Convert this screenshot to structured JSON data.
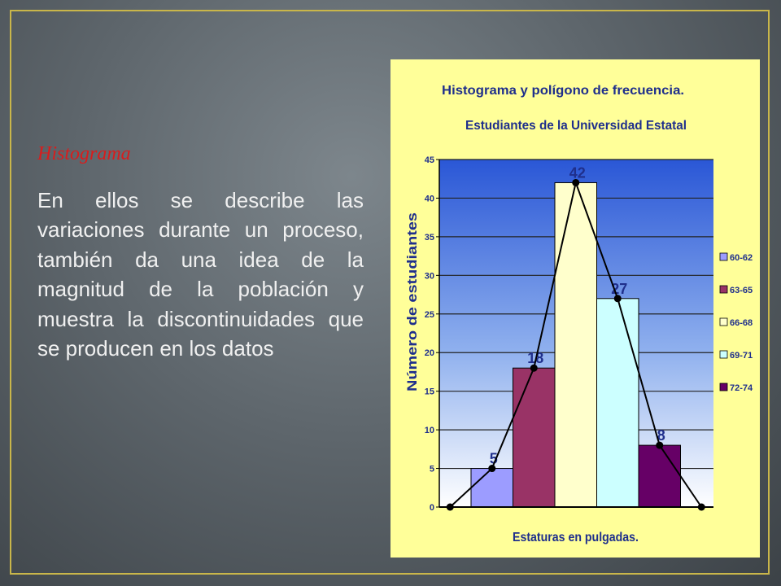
{
  "slide": {
    "heading": "Histograma",
    "body": "En ellos se describe las variaciones durante un proceso, también da una idea de la magnitud de la población y muestra la discontinuidades que se producen en los datos"
  },
  "chart_data": {
    "type": "bar",
    "title": "Histograma y polígono de frecuencia.",
    "subtitle": "Estudiantes de la Universidad Estatal",
    "xlabel": "Estaturas en pulgadas.",
    "ylabel": "Número de estudiantes",
    "ylim": [
      0,
      45
    ],
    "yticks": [
      0,
      5,
      10,
      15,
      20,
      25,
      30,
      35,
      40,
      45
    ],
    "grid": true,
    "legend_position": "right",
    "categories": [
      "60-62",
      "63-65",
      "66-68",
      "69-71",
      "72-74"
    ],
    "values": [
      5,
      18,
      42,
      27,
      8
    ],
    "data_labels": [
      "5",
      "18",
      "42",
      "27",
      "8"
    ],
    "bar_colors": [
      "#9c9cff",
      "#993366",
      "#ffffcc",
      "#ccffff",
      "#660066"
    ],
    "polygon": {
      "type": "line",
      "values": [
        0,
        5,
        18,
        42,
        27,
        8,
        0
      ],
      "color": "#000000"
    },
    "colors": {
      "background": "#ffff99",
      "plot_top": "#2a57d6",
      "plot_bottom": "#ffffff",
      "title": "#1f2f8c"
    }
  }
}
